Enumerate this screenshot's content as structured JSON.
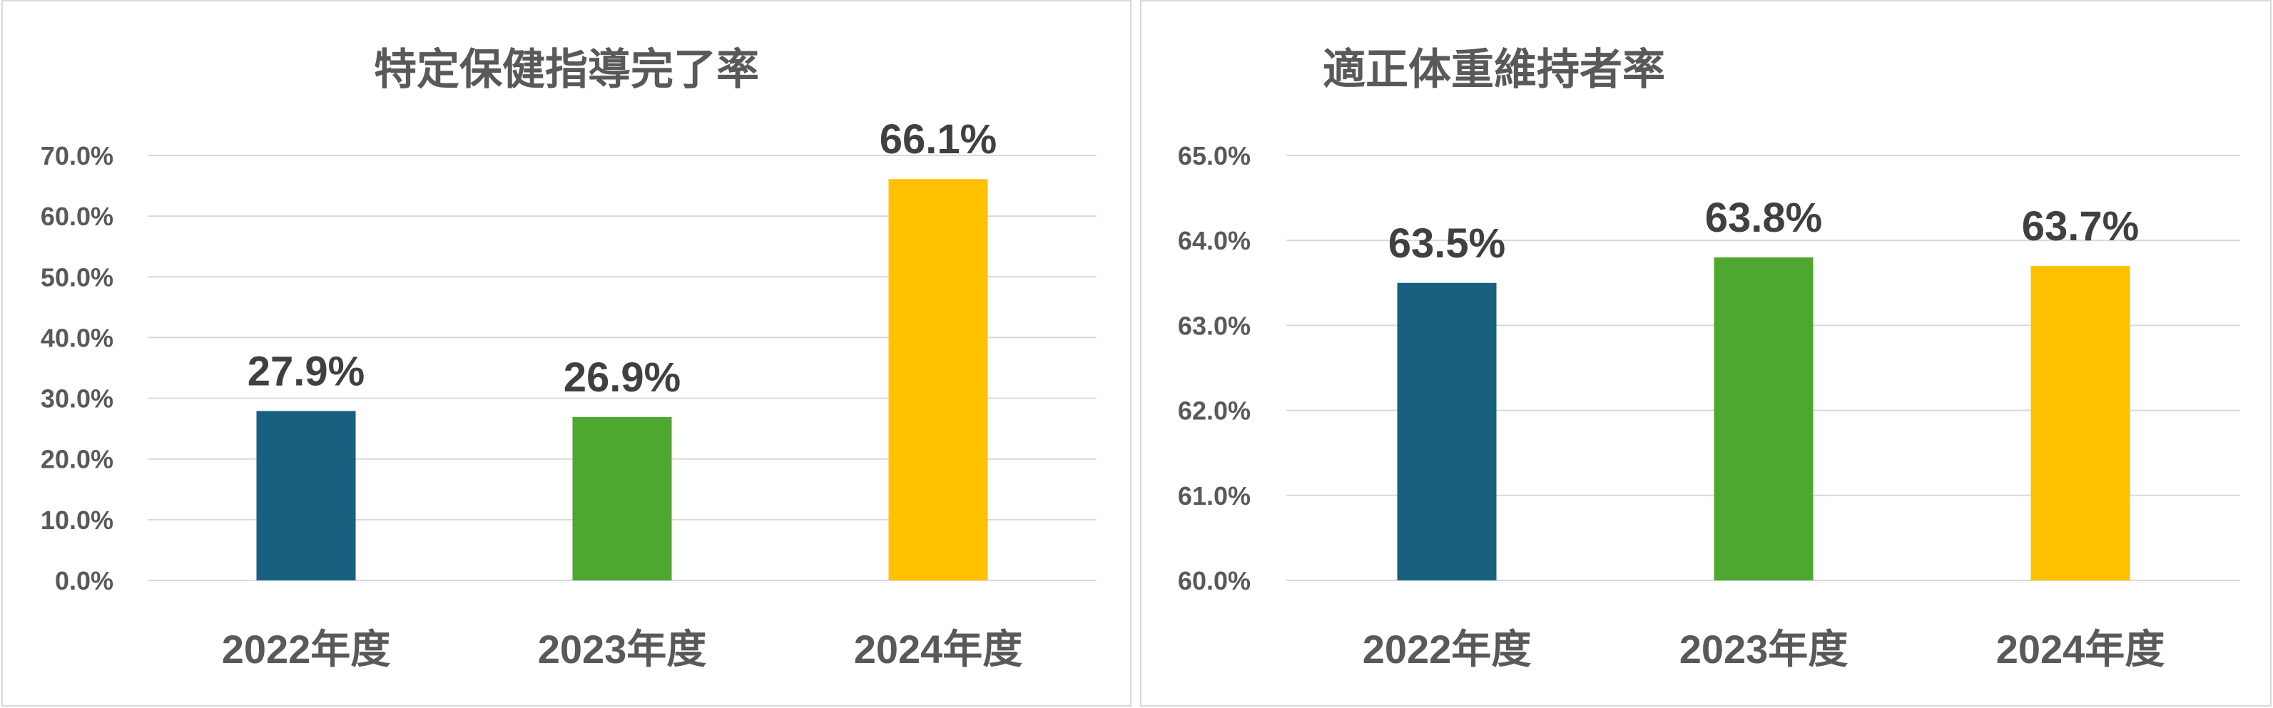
{
  "chart_data": [
    {
      "type": "bar",
      "title": "特定保健指導完了率",
      "categories": [
        "2022年度",
        "2023年度",
        "2024年度"
      ],
      "values": [
        27.9,
        26.9,
        66.1
      ],
      "data_labels": [
        "27.9%",
        "26.9%",
        "66.1%"
      ],
      "bar_colors": [
        "#17607f",
        "#4ea72e",
        "#ffc000"
      ],
      "ylim": [
        0,
        70
      ],
      "yticks": [
        "0.0%",
        "10.0%",
        "20.0%",
        "30.0%",
        "40.0%",
        "50.0%",
        "60.0%",
        "70.0%"
      ],
      "grid": true,
      "xlabel": "",
      "ylabel": ""
    },
    {
      "type": "bar",
      "title": "適正体重維持者率",
      "categories": [
        "2022年度",
        "2023年度",
        "2024年度"
      ],
      "values": [
        63.5,
        63.8,
        63.7
      ],
      "data_labels": [
        "63.5%",
        "63.8%",
        "63.7%"
      ],
      "bar_colors": [
        "#17607f",
        "#4ea72e",
        "#ffc000"
      ],
      "ylim": [
        60,
        65
      ],
      "yticks": [
        "60.0%",
        "61.0%",
        "62.0%",
        "63.0%",
        "64.0%",
        "65.0%"
      ],
      "grid": true,
      "xlabel": "",
      "ylabel": ""
    }
  ]
}
